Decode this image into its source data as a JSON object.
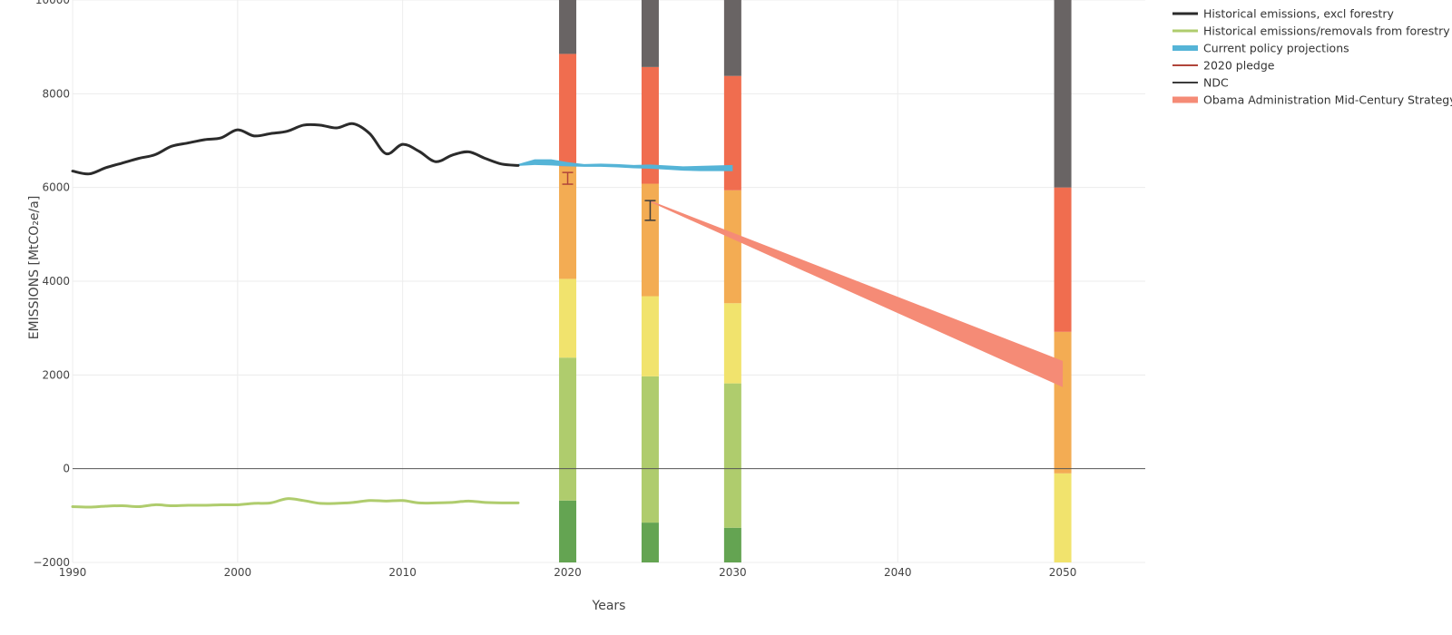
{
  "chart_data": {
    "type": "line",
    "xlabel": "Years",
    "ylabel": "EMISSIONS [MtCO₂e/a]",
    "xlim": [
      1990,
      2055
    ],
    "ylim": [
      -2000,
      10000
    ],
    "xticks": [
      1990,
      2000,
      2010,
      2020,
      2030,
      2040,
      2050
    ],
    "yticks": [
      -2000,
      0,
      2000,
      4000,
      6000,
      8000,
      10000
    ],
    "ytick_labels": [
      "−2000",
      "0",
      "2000",
      "4000",
      "6000",
      "8000",
      "10000"
    ],
    "grid": true,
    "legend_position": "top-right",
    "colors": {
      "historical": "#2b2b2b",
      "forestry": "#afcc6d",
      "current_policy": "#55b4d7",
      "pledge": "#b0453a",
      "ndc": "#3c3c3c",
      "obama": "#f58b76",
      "zero_line": "#555555",
      "grid": "#ececec"
    },
    "legend": [
      {
        "key": "historical",
        "label": "Historical emissions, excl forestry",
        "width": 3
      },
      {
        "key": "forestry",
        "label": "Historical emissions/removals from forestry",
        "width": 3
      },
      {
        "key": "current_policy",
        "label": "Current policy projections",
        "width": 6
      },
      {
        "key": "pledge",
        "label": "2020 pledge",
        "width": 2
      },
      {
        "key": "ndc",
        "label": "NDC",
        "width": 2
      },
      {
        "key": "obama",
        "label": "Obama Administration Mid-Century Strategy",
        "width": 7
      }
    ],
    "series": [
      {
        "name": "Historical emissions, excl forestry",
        "key": "historical",
        "x": [
          1990,
          1991,
          1992,
          1993,
          1994,
          1995,
          1996,
          1997,
          1998,
          1999,
          2000,
          2001,
          2002,
          2003,
          2004,
          2005,
          2006,
          2007,
          2008,
          2009,
          2010,
          2011,
          2012,
          2013,
          2014,
          2015,
          2016,
          2017
        ],
        "y": [
          6350,
          6290,
          6420,
          6520,
          6620,
          6700,
          6880,
          6950,
          7020,
          7060,
          7230,
          7100,
          7150,
          7200,
          7330,
          7330,
          7270,
          7360,
          7150,
          6720,
          6920,
          6770,
          6550,
          6690,
          6760,
          6620,
          6500,
          6470
        ]
      },
      {
        "name": "Historical emissions/removals from forestry",
        "key": "forestry",
        "x": [
          1990,
          1991,
          1992,
          1993,
          1994,
          1995,
          1996,
          1997,
          1998,
          1999,
          2000,
          2001,
          2002,
          2003,
          2004,
          2005,
          2006,
          2007,
          2008,
          2009,
          2010,
          2011,
          2012,
          2013,
          2014,
          2015,
          2016,
          2017
        ],
        "y": [
          -810,
          -820,
          -800,
          -790,
          -810,
          -770,
          -790,
          -780,
          -780,
          -770,
          -770,
          -740,
          -730,
          -640,
          -680,
          -740,
          -740,
          -720,
          -680,
          -690,
          -680,
          -730,
          -730,
          -720,
          -690,
          -720,
          -730,
          -730
        ]
      }
    ],
    "current_policy": {
      "x": [
        2017,
        2018,
        2019,
        2020,
        2021,
        2022,
        2023,
        2024,
        2025,
        2026,
        2027,
        2028,
        2029,
        2030
      ],
      "upper": [
        6500,
        6600,
        6600,
        6540,
        6500,
        6510,
        6500,
        6480,
        6490,
        6470,
        6450,
        6460,
        6470,
        6480
      ],
      "lower": [
        6460,
        6480,
        6470,
        6450,
        6440,
        6440,
        6430,
        6410,
        6400,
        6380,
        6360,
        6350,
        6350,
        6350
      ]
    },
    "pledge_2020": {
      "x": 2020,
      "low": 6070,
      "high": 6320
    },
    "ndc_2025": {
      "x": 2025,
      "low": 5300,
      "high": 5720
    },
    "obama_band": {
      "x": [
        2025,
        2050
      ],
      "upper": [
        5720,
        2300
      ],
      "lower": [
        5690,
        1740
      ]
    },
    "rating_bars": [
      {
        "x": 2020,
        "segments": [
          [
            -2000,
            -680,
            "#64a452"
          ],
          [
            -680,
            2370,
            "#afcc6d"
          ],
          [
            2370,
            4050,
            "#f1e36d"
          ],
          [
            4050,
            6450,
            "#f3ac53"
          ],
          [
            6450,
            8850,
            "#f06d4f"
          ],
          [
            8850,
            10000,
            "#696464"
          ]
        ]
      },
      {
        "x": 2025,
        "segments": [
          [
            -2000,
            -1150,
            "#64a452"
          ],
          [
            -1150,
            1970,
            "#afcc6d"
          ],
          [
            1970,
            3680,
            "#f1e36d"
          ],
          [
            3680,
            6080,
            "#f3ac53"
          ],
          [
            6080,
            8570,
            "#f06d4f"
          ],
          [
            8570,
            10000,
            "#696464"
          ]
        ]
      },
      {
        "x": 2030,
        "segments": [
          [
            -2000,
            -1260,
            "#64a452"
          ],
          [
            -1260,
            1820,
            "#afcc6d"
          ],
          [
            1820,
            3530,
            "#f1e36d"
          ],
          [
            3530,
            5940,
            "#f3ac53"
          ],
          [
            5940,
            8380,
            "#f06d4f"
          ],
          [
            8380,
            10000,
            "#696464"
          ]
        ]
      },
      {
        "x": 2050,
        "segments": [
          [
            -2000,
            -100,
            "#f1e36d"
          ],
          [
            -100,
            2920,
            "#f3ac53"
          ],
          [
            2920,
            6000,
            "#f06d4f"
          ],
          [
            6000,
            10000,
            "#696464"
          ]
        ]
      }
    ]
  }
}
